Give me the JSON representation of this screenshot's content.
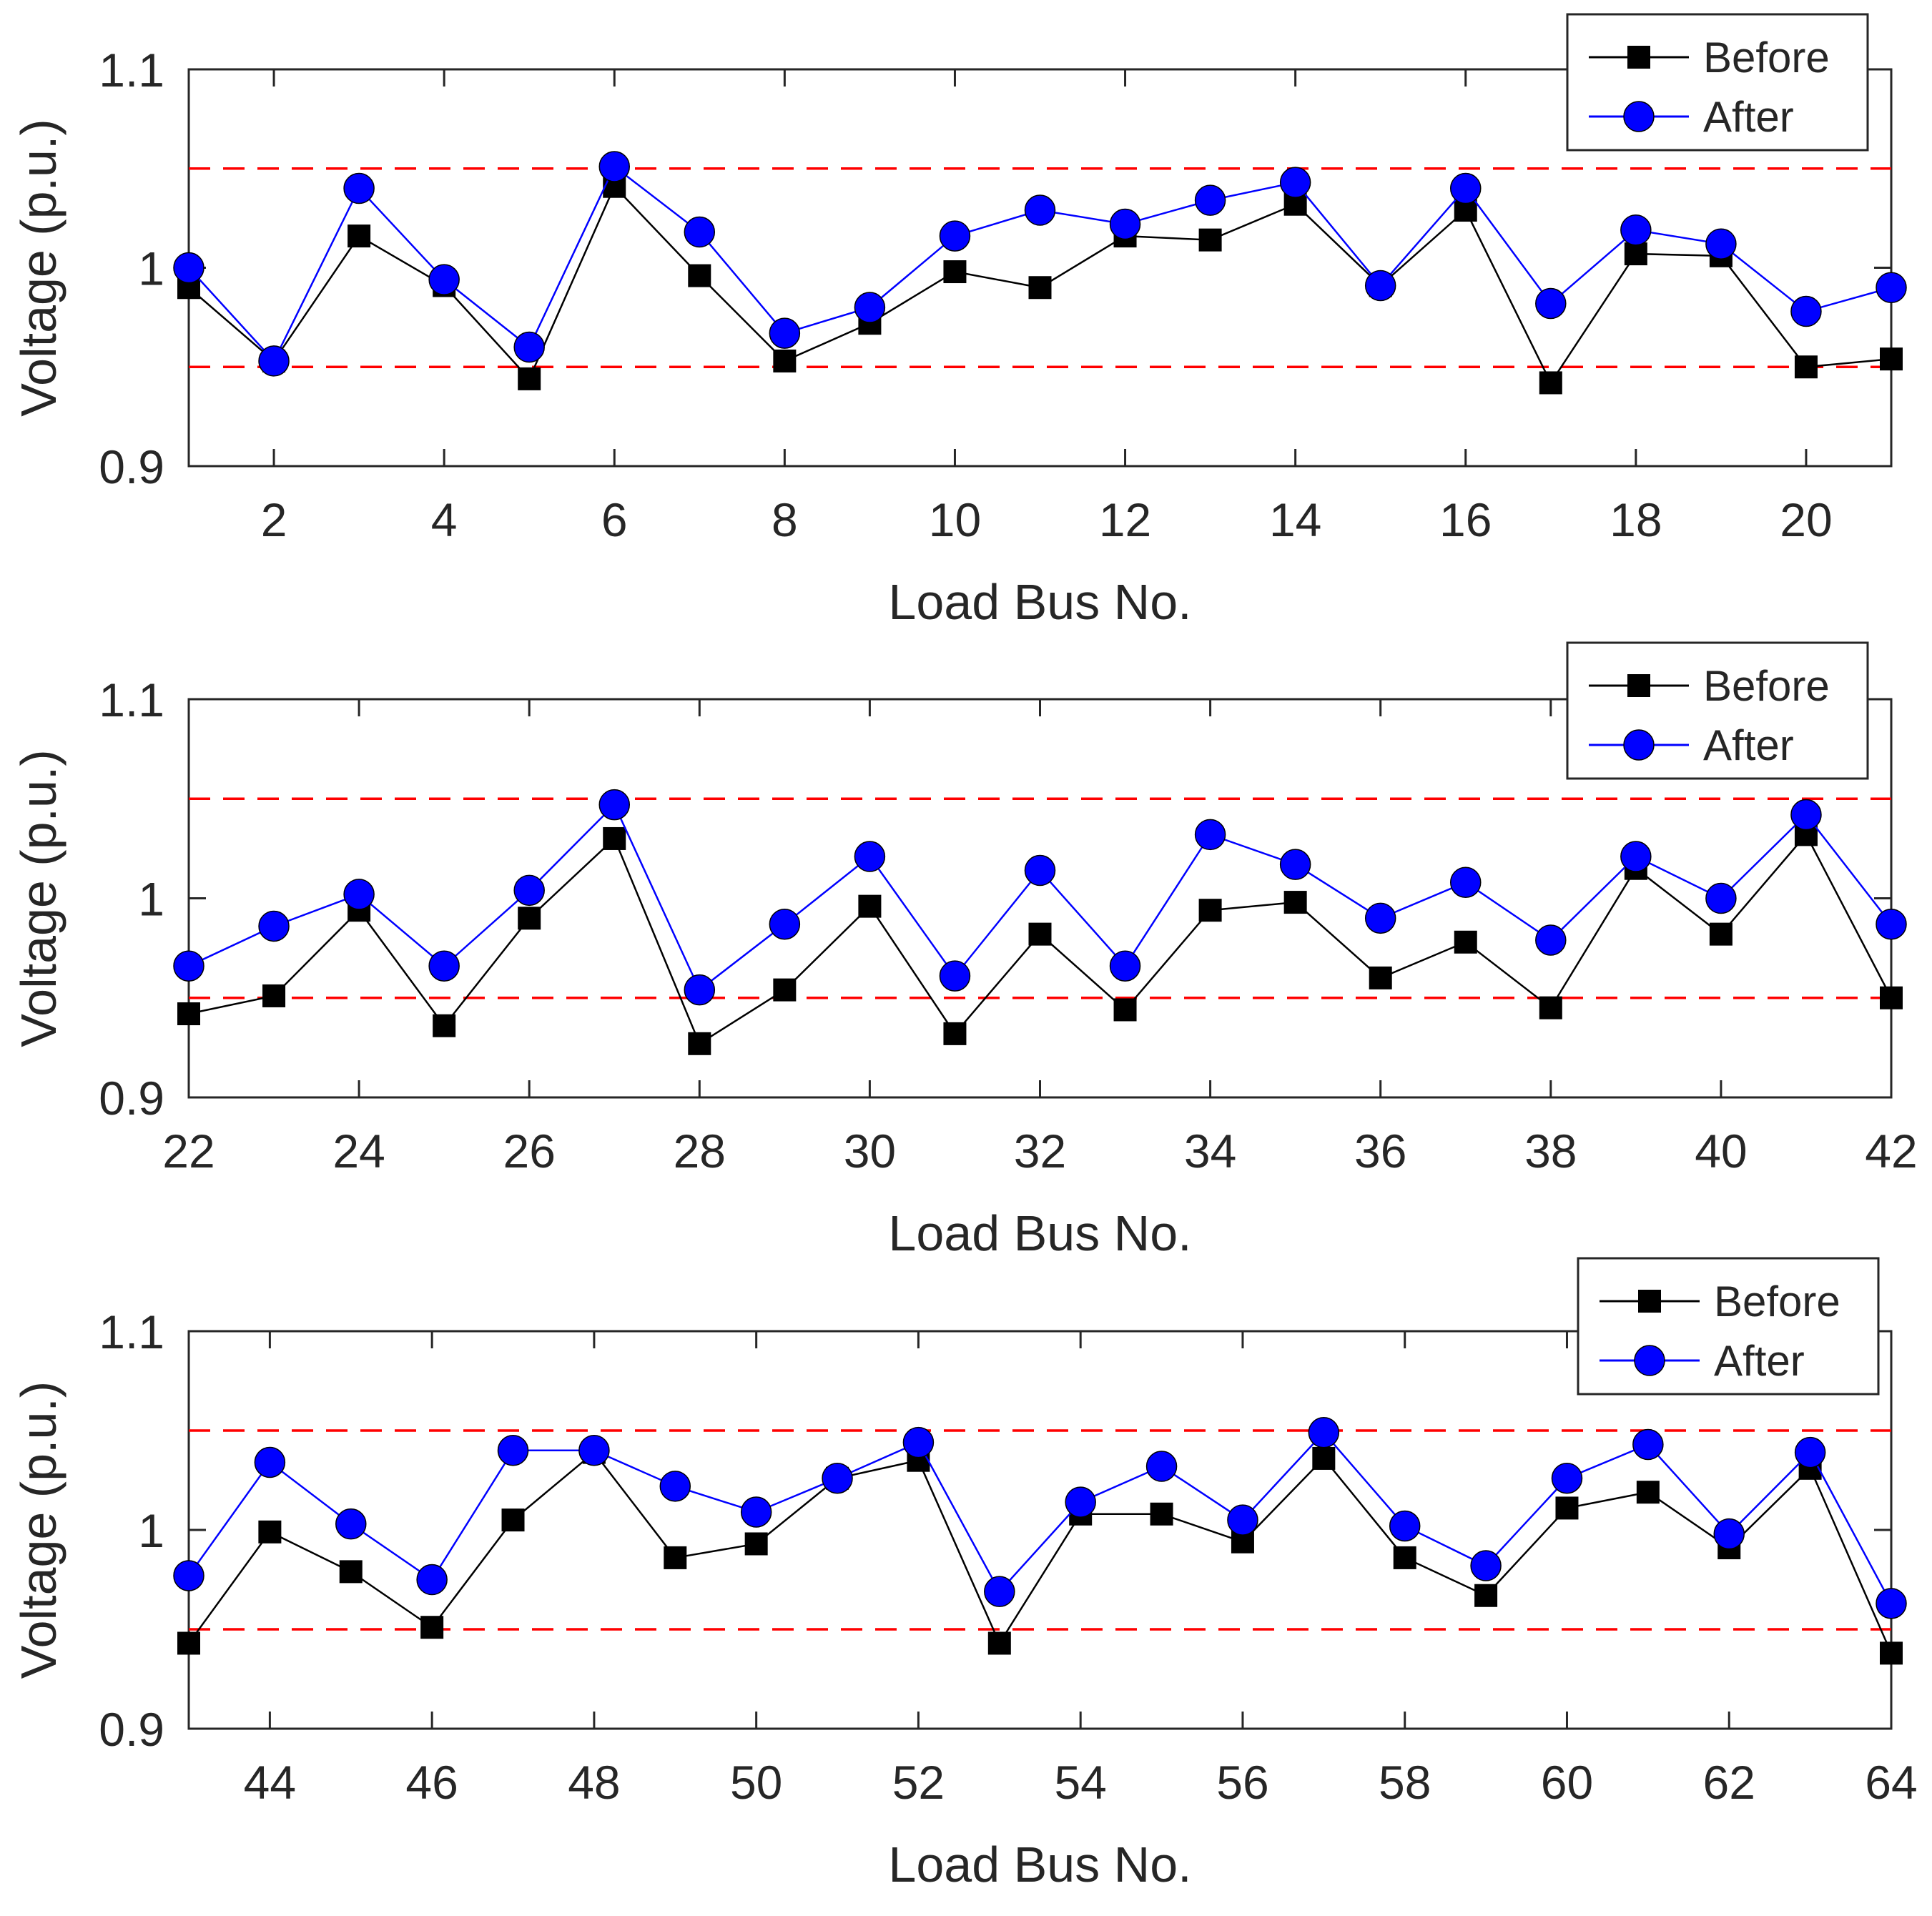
{
  "figure": {
    "limit_color": "#ff0000",
    "before_color": "#000000",
    "after_color": "#0000ff"
  },
  "chart_data": [
    {
      "type": "line",
      "xlabel": "Load Bus No.",
      "ylabel": "Voltage (p.u.)",
      "xlim": [
        1,
        21
      ],
      "ylim": [
        0.9,
        1.1
      ],
      "yticks": [
        0.9,
        1,
        1.1
      ],
      "ytick_labels": [
        "0.9",
        "1",
        "1.1"
      ],
      "xticks": [
        2,
        4,
        6,
        8,
        10,
        12,
        14,
        16,
        18,
        20
      ],
      "limits": [
        0.95,
        1.05
      ],
      "legend": [
        "Before",
        "After"
      ],
      "legend_position": "top-right",
      "x": [
        1,
        2,
        3,
        4,
        5,
        6,
        7,
        8,
        9,
        10,
        11,
        12,
        13,
        14,
        15,
        16,
        17,
        18,
        19,
        20,
        21
      ],
      "series": [
        {
          "name": "Before",
          "marker": "square",
          "values": [
            0.99,
            0.953,
            1.016,
            0.991,
            0.944,
            1.041,
            0.996,
            0.953,
            0.972,
            0.998,
            0.99,
            1.016,
            1.014,
            1.032,
            0.991,
            1.029,
            0.942,
            1.007,
            1.006,
            0.95,
            0.954
          ]
        },
        {
          "name": "After",
          "marker": "circle",
          "values": [
            1.0,
            0.953,
            1.04,
            0.994,
            0.96,
            1.051,
            1.018,
            0.967,
            0.98,
            1.016,
            1.029,
            1.022,
            1.034,
            1.043,
            0.991,
            1.04,
            0.982,
            1.019,
            1.012,
            0.978,
            0.99
          ]
        }
      ]
    },
    {
      "type": "line",
      "xlabel": "Load Bus No.",
      "ylabel": "Voltage (p.u.)",
      "xlim": [
        22,
        42
      ],
      "ylim": [
        0.9,
        1.1
      ],
      "yticks": [
        0.9,
        1,
        1.1
      ],
      "ytick_labels": [
        "0.9",
        "1",
        "1.1"
      ],
      "xticks": [
        22,
        24,
        26,
        28,
        30,
        32,
        34,
        36,
        38,
        40,
        42
      ],
      "limits": [
        0.95,
        1.05
      ],
      "legend": [
        "Before",
        "After"
      ],
      "legend_position": "top-right",
      "x": [
        22,
        23,
        24,
        25,
        26,
        27,
        28,
        29,
        30,
        31,
        32,
        33,
        34,
        35,
        36,
        37,
        38,
        39,
        40,
        41,
        42
      ],
      "series": [
        {
          "name": "Before",
          "marker": "square",
          "values": [
            0.942,
            0.951,
            0.994,
            0.936,
            0.99,
            1.03,
            0.927,
            0.954,
            0.996,
            0.932,
            0.982,
            0.944,
            0.994,
            0.998,
            0.96,
            0.978,
            0.945,
            1.015,
            0.982,
            1.032,
            0.95
          ]
        },
        {
          "name": "After",
          "marker": "circle",
          "values": [
            0.966,
            0.986,
            1.002,
            0.966,
            1.004,
            1.047,
            0.954,
            0.987,
            1.021,
            0.961,
            1.014,
            0.966,
            1.032,
            1.017,
            0.99,
            1.008,
            0.979,
            1.021,
            1.0,
            1.042,
            0.987
          ]
        }
      ]
    },
    {
      "type": "line",
      "xlabel": "Load Bus No.",
      "ylabel": "Voltage (p.u.)",
      "xlim": [
        43,
        64
      ],
      "ylim": [
        0.9,
        1.1
      ],
      "yticks": [
        0.9,
        1,
        1.1
      ],
      "ytick_labels": [
        "0.9",
        "1",
        "1.1"
      ],
      "xticks": [
        44,
        46,
        48,
        50,
        52,
        54,
        56,
        58,
        60,
        62,
        64
      ],
      "limits": [
        0.95,
        1.05
      ],
      "legend": [
        "Before",
        "After"
      ],
      "legend_position": "top-right",
      "x": [
        43,
        44,
        45,
        46,
        47,
        48,
        49,
        50,
        51,
        52,
        53,
        54,
        55,
        56,
        57,
        58,
        59,
        60,
        61,
        62,
        63,
        64
      ],
      "series": [
        {
          "name": "Before",
          "marker": "square",
          "values": [
            0.943,
            0.999,
            0.979,
            0.951,
            1.005,
            1.039,
            0.986,
            0.993,
            1.026,
            1.035,
            0.943,
            1.008,
            1.008,
            0.994,
            1.036,
            0.986,
            0.967,
            1.011,
            1.019,
            0.991,
            1.031,
            0.938
          ]
        },
        {
          "name": "After",
          "marker": "circle",
          "values": [
            0.977,
            1.034,
            1.003,
            0.975,
            1.04,
            1.04,
            1.022,
            1.009,
            1.026,
            1.044,
            0.969,
            1.014,
            1.032,
            1.005,
            1.049,
            1.002,
            0.982,
            1.026,
            1.043,
            0.998,
            1.039,
            0.963
          ]
        }
      ]
    }
  ]
}
